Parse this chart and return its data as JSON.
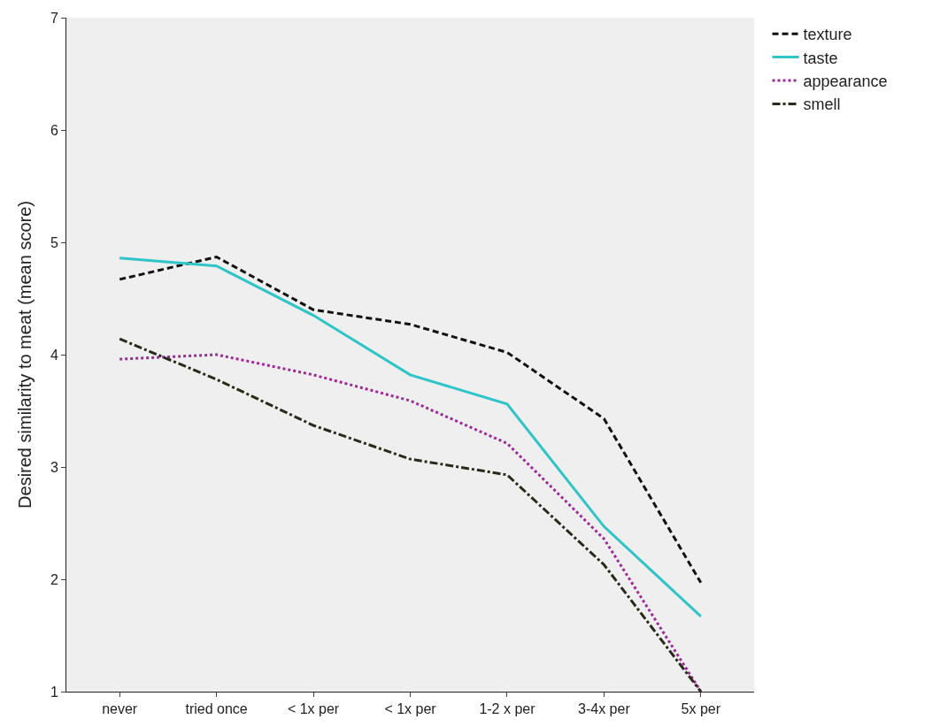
{
  "chart_data": {
    "type": "line",
    "ylabel": "Desired similarity to meat (mean score)",
    "categories": [
      "never",
      "tried once",
      "< 1x per",
      "< 1x per",
      "1-2 x per",
      "3-4x per",
      "5x per"
    ],
    "ylim": [
      1,
      7
    ],
    "yticks": [
      1,
      2,
      3,
      4,
      5,
      6,
      7
    ],
    "grid": false,
    "legend": "top right",
    "marker": "none",
    "series": [
      {
        "name": "texture",
        "color": "#111111",
        "line_style": "dashed",
        "values": [
          4.67,
          4.87,
          4.4,
          4.27,
          4.02,
          3.43,
          1.97
        ]
      },
      {
        "name": "taste",
        "color": "#2ec4c8",
        "line_style": "solid",
        "values": [
          4.86,
          4.79,
          4.35,
          3.82,
          3.56,
          2.47,
          1.67
        ]
      },
      {
        "name": "appearance",
        "color": "#a0289a",
        "line_style": "dotted",
        "values": [
          3.96,
          4.0,
          3.82,
          3.59,
          3.21,
          2.36,
          1.0
        ]
      },
      {
        "name": "smell",
        "color": "#2a2a1a",
        "line_style": "dashdot",
        "values": [
          4.14,
          3.78,
          3.37,
          3.07,
          2.93,
          2.13,
          1.0
        ]
      }
    ]
  }
}
